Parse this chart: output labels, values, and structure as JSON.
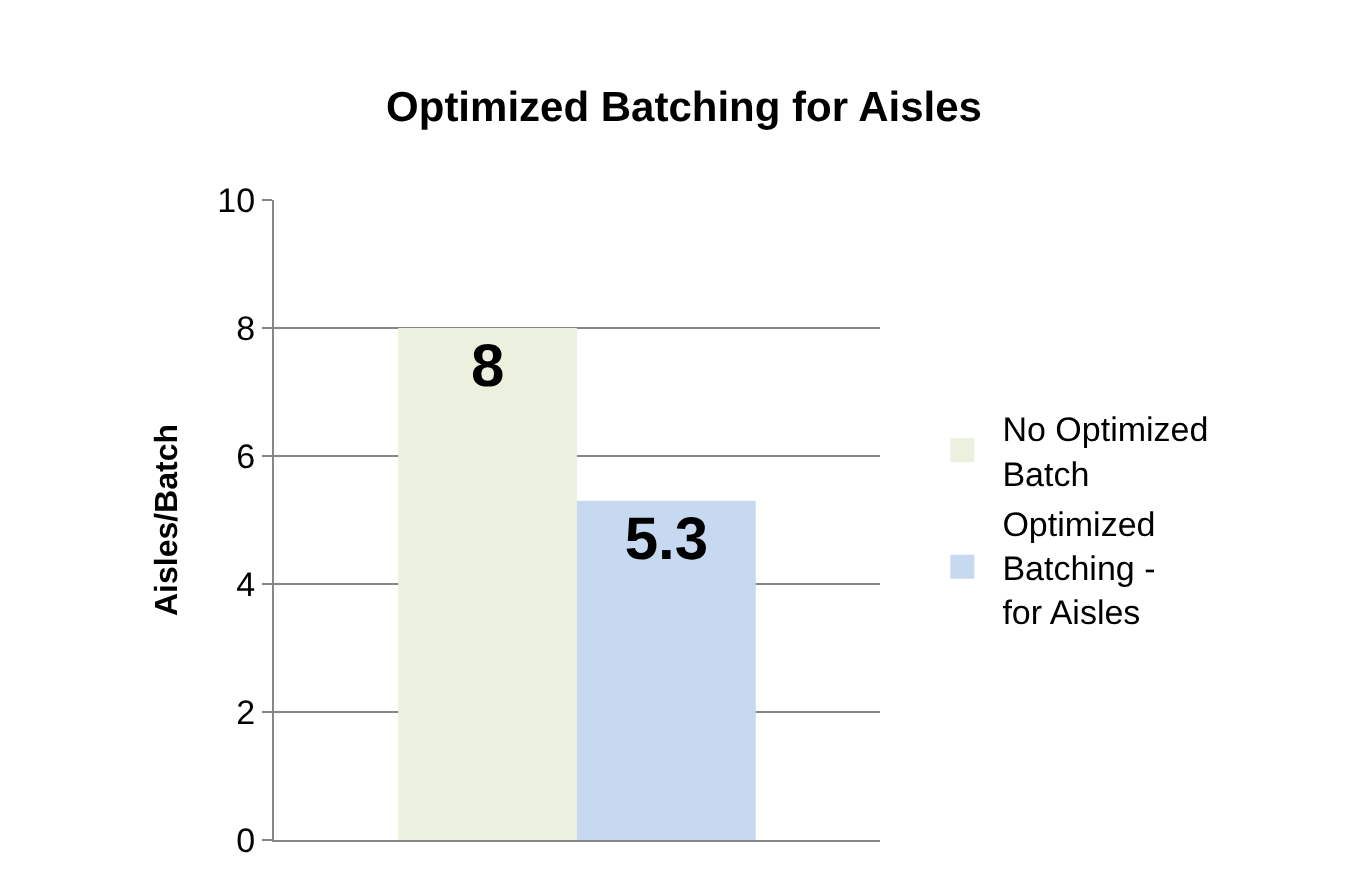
{
  "chart_data": {
    "type": "bar",
    "title": "Optimized Batching for Aisles",
    "ylabel": "Aisles/Batch",
    "categories": [
      null
    ],
    "series": [
      {
        "name": "No Optimized Batch",
        "color": "#ebf1de",
        "values": [
          8
        ]
      },
      {
        "name": "Optimized Batching - for Aisles",
        "color": "#c6d9f1",
        "values": [
          5.3
        ]
      }
    ],
    "ylim": [
      0,
      10
    ],
    "yticks": [
      0,
      2,
      4,
      6,
      8,
      10
    ],
    "grid": "y",
    "legend": "right",
    "data_labels": true
  }
}
